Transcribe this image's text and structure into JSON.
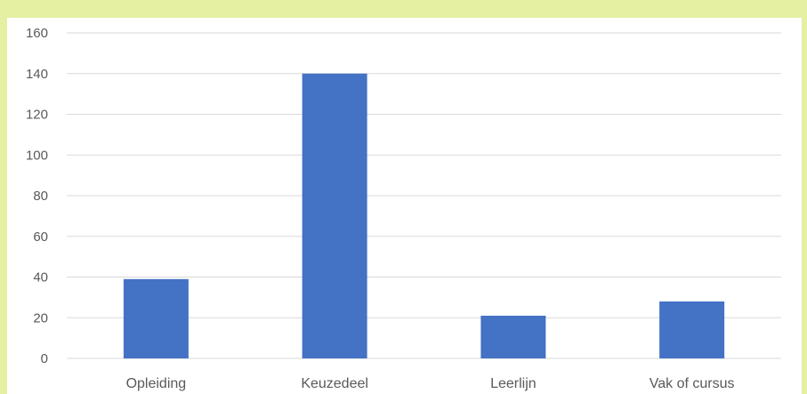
{
  "chart_data": {
    "type": "bar",
    "categories": [
      "Opleiding",
      "Keuzedeel",
      "Leerlijn",
      "Vak of cursus"
    ],
    "values": [
      39,
      140,
      21,
      28
    ],
    "y_ticks": [
      "0",
      "20",
      "40",
      "60",
      "80",
      "100",
      "120",
      "140",
      "160"
    ],
    "ylim": [
      0,
      160
    ],
    "grid": true,
    "title": "",
    "xlabel": "",
    "ylabel": "",
    "colors": {
      "bar": "#4472c4",
      "grid": "#d9d9d9",
      "frame_border": "#e6f0a3"
    }
  }
}
